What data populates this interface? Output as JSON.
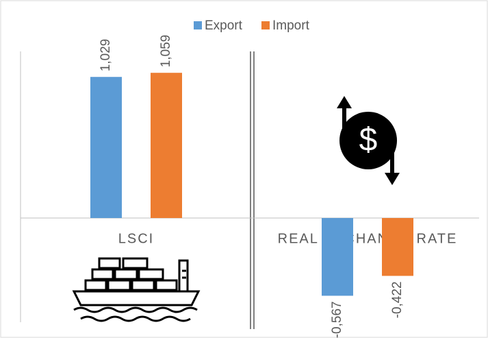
{
  "chart_data": {
    "type": "bar",
    "categories": [
      "LSCI",
      "REAL EXCHANGE RATE"
    ],
    "series": [
      {
        "name": "Export",
        "color": "#5b9bd5",
        "values": [
          1.029,
          -0.567
        ],
        "value_labels": [
          "1,029",
          "-0,567"
        ]
      },
      {
        "name": "Import",
        "color": "#ed7d31",
        "values": [
          1.059,
          -0.422
        ],
        "value_labels": [
          "1,059",
          "-0,422"
        ]
      }
    ],
    "ylim": [
      -0.76,
      1.39
    ],
    "legend": "top"
  }
}
